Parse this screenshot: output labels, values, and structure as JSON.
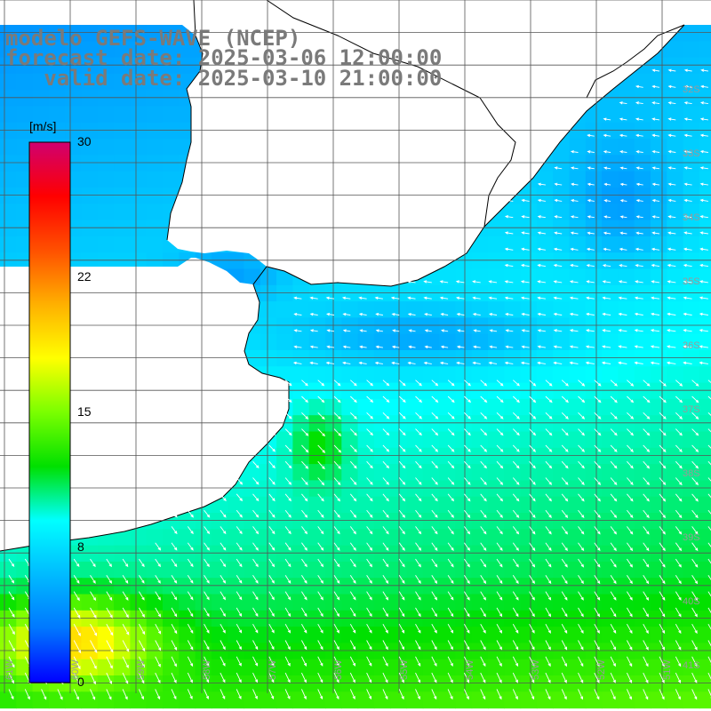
{
  "title": {
    "line1": "modelo GEFS-WAVE (NCEP)",
    "line2": "forecast date: 2025-03-06 12:00:00",
    "line3": "   valid date: 2025-03-10 21:00:00"
  },
  "colorbar": {
    "unit": "[m/s]",
    "min": 0,
    "max": 30,
    "tick_values": [
      30,
      22,
      15,
      8,
      0
    ],
    "tick_labels": [
      "30",
      "22",
      "15",
      "8",
      "0"
    ],
    "colors": [
      "#0000ff",
      "#0077ff",
      "#00bbff",
      "#00ffff",
      "#00e000",
      "#7aff00",
      "#ffff00",
      "#ffb000",
      "#ff5000",
      "#ff0000",
      "#d00070"
    ]
  },
  "map": {
    "variable": "wind speed and direction",
    "latitude_labels": [
      "32S",
      "33S",
      "34S",
      "35S",
      "36S",
      "37S",
      "38S",
      "39S",
      "40S",
      "41S"
    ],
    "longitude_labels": [
      "61W",
      "60W",
      "59W",
      "58W",
      "57W",
      "56W",
      "55W",
      "54W",
      "53W",
      "52W",
      "51W"
    ],
    "land_color": "#ffffff",
    "grid_color": "#555555"
  }
}
